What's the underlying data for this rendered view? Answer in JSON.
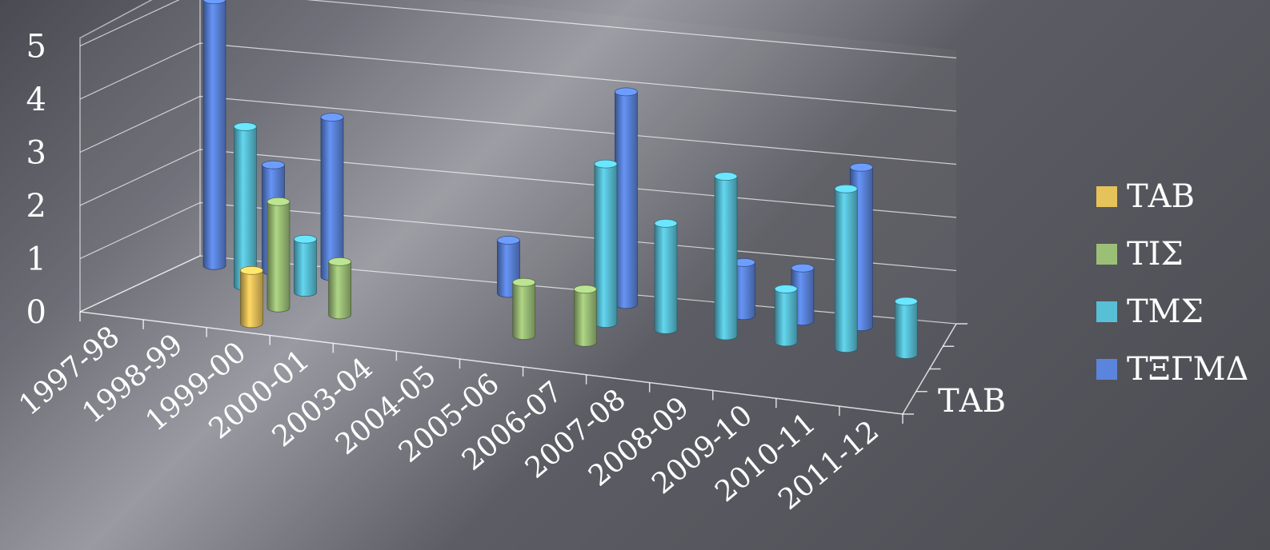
{
  "chart_data": {
    "type": "bar",
    "title": "",
    "xlabel": "",
    "ylabel": "",
    "depth_label": "ΤΑΒ",
    "ylim": [
      0,
      5
    ],
    "y_ticks": [
      "0",
      "1",
      "2",
      "3",
      "4",
      "5"
    ],
    "categories": [
      "1997-98",
      "1998-99",
      "1999-00",
      "2000-01",
      "2003-04",
      "2004-05",
      "2005-06",
      "2006-07",
      "2007-08",
      "2008-09",
      "2009-10",
      "2010-11",
      "2011-12"
    ],
    "series": [
      {
        "name": "ΤΑΒ",
        "color": "#e6c25a",
        "values": [
          0,
          0,
          1,
          0,
          0,
          0,
          0,
          0,
          0,
          0,
          0,
          0,
          0
        ]
      },
      {
        "name": "ΤΙΣ",
        "color": "#9cbf78",
        "values": [
          0,
          0,
          2,
          1,
          0,
          0,
          1,
          1,
          0,
          0,
          0,
          0,
          0
        ]
      },
      {
        "name": "ΤΜΣ",
        "color": "#58c0d6",
        "values": [
          0,
          3,
          1,
          0,
          0,
          0,
          0,
          3,
          2,
          3,
          1,
          3,
          1
        ]
      },
      {
        "name": "ΤΞΓΜΔ",
        "color": "#5b84dc",
        "values": [
          5,
          2,
          3,
          0,
          0,
          1,
          0,
          4,
          0,
          1,
          1,
          3,
          0
        ]
      }
    ],
    "legend_position": "right",
    "grid": true
  }
}
